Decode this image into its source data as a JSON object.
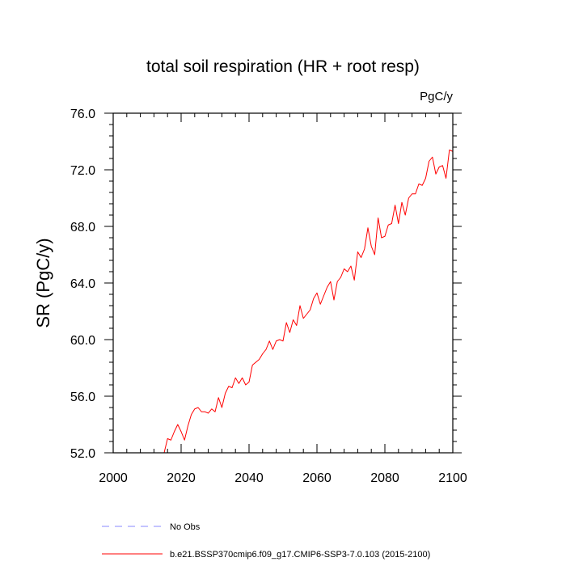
{
  "chart_data": {
    "type": "line",
    "title": "total soil respiration (HR + root resp)",
    "units_label": "PgC/y",
    "ylabel": "SR  (PgC/y)",
    "xlabel": "",
    "xlim": [
      2000,
      2100
    ],
    "ylim": [
      52,
      76
    ],
    "x_ticks": [
      2000,
      2020,
      2040,
      2060,
      2080,
      2100
    ],
    "x_tick_labels": [
      "2000",
      "2020",
      "2040",
      "2060",
      "2080",
      "2100"
    ],
    "y_ticks": [
      52,
      56,
      60,
      64,
      68,
      72,
      76
    ],
    "y_tick_labels": [
      "52.0",
      "56.0",
      "60.0",
      "64.0",
      "68.0",
      "72.0",
      "76.0"
    ],
    "legend": [
      {
        "label": "No Obs",
        "style": "dashed",
        "color": "#8a8aff"
      },
      {
        "label": "b.e21.BSSP370cmip6.f09_g17.CMIP6-SSP3-7.0.103 (2015-2100)",
        "style": "solid",
        "color": "#ff0000"
      }
    ],
    "series": [
      {
        "name": "b.e21.BSSP370cmip6.f09_g17.CMIP6-SSP3-7.0.103 (2015-2100)",
        "color": "#ff0000",
        "x": [
          2015,
          2016,
          2017,
          2018,
          2019,
          2020,
          2021,
          2022,
          2023,
          2024,
          2025,
          2026,
          2027,
          2028,
          2029,
          2030,
          2031,
          2032,
          2033,
          2034,
          2035,
          2036,
          2037,
          2038,
          2039,
          2040,
          2041,
          2042,
          2043,
          2044,
          2045,
          2046,
          2047,
          2048,
          2049,
          2050,
          2051,
          2052,
          2053,
          2054,
          2055,
          2056,
          2057,
          2058,
          2059,
          2060,
          2061,
          2062,
          2063,
          2064,
          2065,
          2066,
          2067,
          2068,
          2069,
          2070,
          2071,
          2072,
          2073,
          2074,
          2075,
          2076,
          2077,
          2078,
          2079,
          2080,
          2081,
          2082,
          2083,
          2084,
          2085,
          2086,
          2087,
          2088,
          2089,
          2090,
          2091,
          2092,
          2093,
          2094,
          2095,
          2096,
          2097,
          2098,
          2099,
          2100
        ],
        "values": [
          52.0,
          53.0,
          52.9,
          53.5,
          54.0,
          53.5,
          52.9,
          53.9,
          54.7,
          55.1,
          55.2,
          54.9,
          54.9,
          54.8,
          55.1,
          54.9,
          55.9,
          55.2,
          56.2,
          56.7,
          56.6,
          57.3,
          56.9,
          57.3,
          56.8,
          57.0,
          58.2,
          58.4,
          58.6,
          59.0,
          59.3,
          59.9,
          59.3,
          59.9,
          60.0,
          59.9,
          61.2,
          60.5,
          61.4,
          61.0,
          62.4,
          61.5,
          61.8,
          62.1,
          62.9,
          63.3,
          62.5,
          63.1,
          63.7,
          64.1,
          62.8,
          64.1,
          64.4,
          65.0,
          64.8,
          65.2,
          64.2,
          66.2,
          65.8,
          66.4,
          67.9,
          66.6,
          66.0,
          68.6,
          67.2,
          67.3,
          68.1,
          68.2,
          69.5,
          68.2,
          69.7,
          68.8,
          70.0,
          70.3,
          70.3,
          71.0,
          70.9,
          71.4,
          72.6,
          72.9,
          71.7,
          72.2,
          72.3,
          71.4,
          73.4,
          73.3
        ]
      }
    ]
  }
}
